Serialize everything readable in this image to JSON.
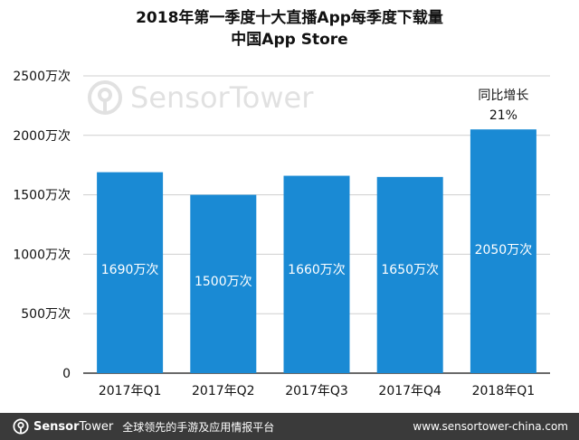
{
  "title_lines": [
    "2018年第一季度十大直播App每季度下载量",
    "中国App Store"
  ],
  "watermark": {
    "brand": "SensorTower",
    "icon": "sensortower-logo-icon"
  },
  "annotation": {
    "line1": "同比增长",
    "line2": "21%"
  },
  "footer": {
    "brand_bold": "Sensor",
    "brand_thin": "Tower",
    "tagline": "全球领先的手游及应用情报平台",
    "url": "www.sensortower-china.com",
    "icon": "sensortower-logo-icon"
  },
  "colors": {
    "bar": "#1a8ad4",
    "grid": "#cfcfcf",
    "footer_bg": "#3a3a3a"
  },
  "chart_data": {
    "type": "bar",
    "title": "2018年第一季度十大直播App每季度下载量 中国App Store",
    "categories": [
      "2017年Q1",
      "2017年Q2",
      "2017年Q3",
      "2017年Q4",
      "2018年Q1"
    ],
    "values": [
      1690,
      1500,
      1660,
      1650,
      2050
    ],
    "value_labels": [
      "1690万次",
      "1500万次",
      "1660万次",
      "1650万次",
      "2050万次"
    ],
    "ylim": [
      0,
      2500
    ],
    "yticks": [
      0,
      500,
      1000,
      1500,
      2000,
      2500
    ],
    "ytick_labels": [
      "0",
      "500万次",
      "1000万次",
      "1500万次",
      "2000万次",
      "2500万次"
    ],
    "grid": true,
    "xlabel": "",
    "ylabel": ""
  }
}
